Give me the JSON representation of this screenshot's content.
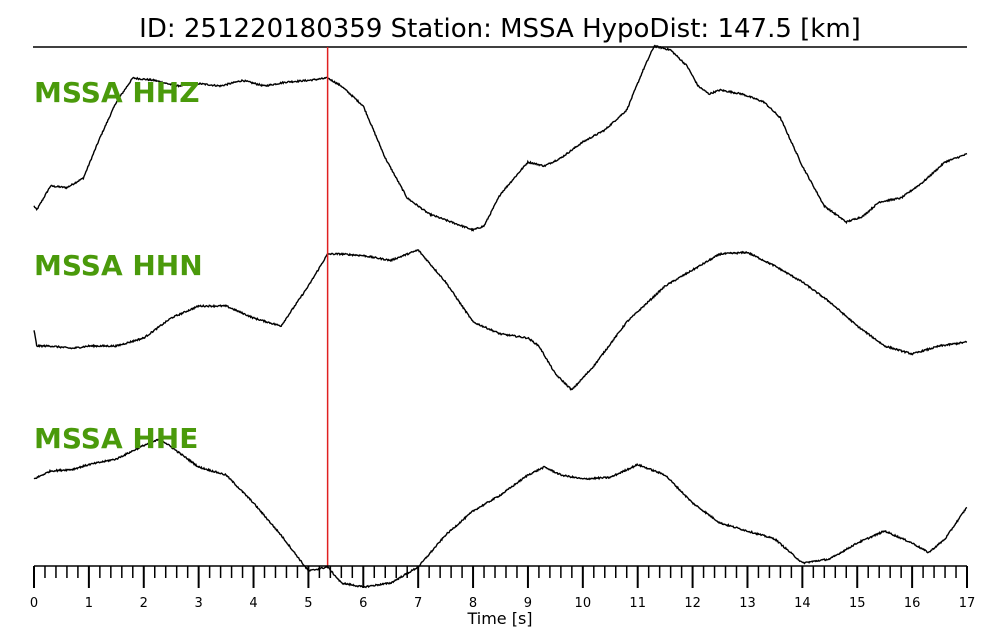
{
  "chart_data": {
    "type": "line",
    "title": "ID: 251220180359   Station: MSSA   HypoDist:   147.5 [km]",
    "xlabel": "Time [s]",
    "xlim": [
      0,
      17
    ],
    "x_ticks": [
      "0",
      "1",
      "2",
      "3",
      "4",
      "5",
      "6",
      "7",
      "8",
      "9",
      "10",
      "11",
      "12",
      "13",
      "14",
      "15",
      "16",
      "17"
    ],
    "minor_tick_step": 0.2,
    "pick_time": 5.35,
    "colors": {
      "trace": "#000000",
      "label": "#4a9a0b",
      "pick_line": "#e02020",
      "axis": "#000000"
    },
    "series": [
      {
        "name": "MSSA HHZ",
        "x": [
          0,
          0.05,
          0.3,
          0.6,
          0.9,
          1.2,
          1.5,
          1.8,
          2.2,
          2.6,
          3.0,
          3.4,
          3.8,
          4.2,
          4.6,
          5.0,
          5.35,
          5.6,
          6.0,
          6.4,
          6.8,
          7.2,
          7.6,
          8.0,
          8.2,
          8.5,
          9.0,
          9.3,
          9.6,
          10.0,
          10.4,
          10.8,
          11.1,
          11.3,
          11.6,
          11.9,
          12.1,
          12.3,
          12.5,
          12.9,
          13.3,
          13.6,
          14.0,
          14.4,
          14.8,
          15.1,
          15.4,
          15.8,
          16.2,
          16.6,
          17.0
        ],
        "y": [
          -0.95,
          -1.0,
          -0.7,
          -0.72,
          -0.6,
          -0.1,
          0.35,
          0.65,
          0.62,
          0.55,
          0.58,
          0.55,
          0.62,
          0.55,
          0.6,
          0.62,
          0.65,
          0.55,
          0.3,
          -0.35,
          -0.85,
          -1.05,
          -1.15,
          -1.25,
          -1.2,
          -0.8,
          -0.4,
          -0.45,
          -0.35,
          -0.15,
          0.0,
          0.25,
          0.75,
          1.05,
          1.0,
          0.8,
          0.55,
          0.45,
          0.5,
          0.45,
          0.35,
          0.15,
          -0.45,
          -0.95,
          -1.15,
          -1.08,
          -0.9,
          -0.85,
          -0.65,
          -0.4,
          -0.3
        ],
        "noise": 0.02
      },
      {
        "name": "MSSA HHN",
        "x": [
          0,
          0.05,
          0.3,
          0.7,
          1.0,
          1.5,
          2.0,
          2.5,
          3.0,
          3.5,
          4.0,
          4.5,
          5.0,
          5.35,
          5.6,
          6.0,
          6.5,
          7.0,
          7.5,
          8.0,
          8.5,
          9.0,
          9.2,
          9.5,
          9.8,
          10.2,
          10.8,
          11.5,
          12.0,
          12.5,
          13.0,
          13.5,
          14.0,
          14.5,
          15.0,
          15.5,
          16.0,
          16.5,
          17.0
        ],
        "y": [
          -0.25,
          -0.45,
          -0.45,
          -0.48,
          -0.45,
          -0.45,
          -0.35,
          -0.1,
          0.05,
          0.05,
          -0.1,
          -0.2,
          0.3,
          0.7,
          0.7,
          0.68,
          0.62,
          0.75,
          0.35,
          -0.15,
          -0.3,
          -0.35,
          -0.45,
          -0.8,
          -1.0,
          -0.7,
          -0.15,
          0.3,
          0.5,
          0.7,
          0.72,
          0.55,
          0.35,
          0.1,
          -0.2,
          -0.45,
          -0.55,
          -0.45,
          -0.4
        ],
        "noise": 0.02
      },
      {
        "name": "MSSA HHE",
        "x": [
          0,
          0.3,
          0.7,
          1.0,
          1.5,
          2.0,
          2.3,
          2.6,
          3.0,
          3.5,
          4.0,
          4.5,
          5.0,
          5.35,
          5.6,
          6.0,
          6.5,
          7.0,
          7.5,
          8.0,
          8.5,
          9.0,
          9.3,
          9.6,
          10.0,
          10.5,
          11.0,
          11.5,
          12.0,
          12.5,
          13.0,
          13.5,
          14.0,
          14.5,
          15.0,
          15.5,
          16.0,
          16.3,
          16.6,
          17.0
        ],
        "y": [
          0.2,
          0.3,
          0.32,
          0.38,
          0.45,
          0.62,
          0.7,
          0.55,
          0.35,
          0.25,
          -0.1,
          -0.5,
          -0.95,
          -0.9,
          -1.1,
          -1.15,
          -1.1,
          -0.9,
          -0.5,
          -0.2,
          0.0,
          0.25,
          0.35,
          0.25,
          0.2,
          0.22,
          0.38,
          0.25,
          -0.1,
          -0.35,
          -0.45,
          -0.55,
          -0.85,
          -0.8,
          -0.6,
          -0.45,
          -0.6,
          -0.72,
          -0.55,
          -0.15
        ],
        "noise": 0.02
      }
    ]
  }
}
